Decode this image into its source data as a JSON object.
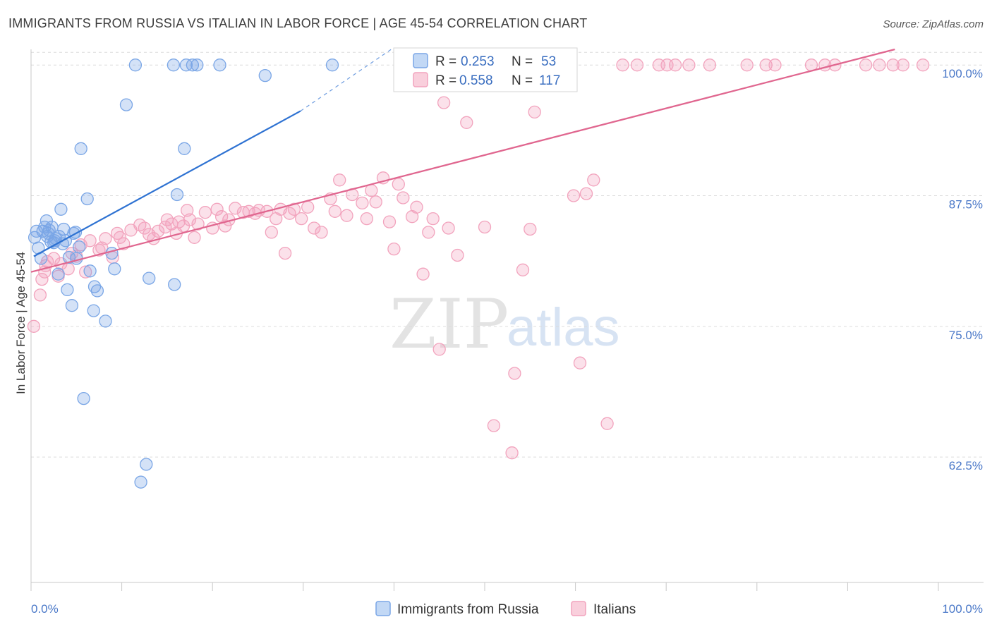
{
  "title": "IMMIGRANTS FROM RUSSIA VS ITALIAN IN LABOR FORCE | AGE 45-54 CORRELATION CHART",
  "source": "Source: ZipAtlas.com",
  "watermark": {
    "zip": "ZIP",
    "atlas": "atlas"
  },
  "legend_top": {
    "rows": [
      {
        "r_label": "R = ",
        "r_value": "0.253",
        "n_label": "N = ",
        "n_value": "53",
        "color": "#7aa6e6"
      },
      {
        "r_label": "R = ",
        "r_value": "0.558",
        "n_label": "N = ",
        "n_value": "117",
        "color": "#f2a3bd"
      }
    ]
  },
  "legend_bottom": [
    {
      "label": "Immigrants from Russia",
      "color": "#7aa6e6"
    },
    {
      "label": "Italians",
      "color": "#f2a3bd"
    }
  ],
  "chart_data": {
    "type": "scatter",
    "title": "IMMIGRANTS FROM RUSSIA VS ITALIAN IN LABOR FORCE | AGE 45-54 CORRELATION CHART",
    "xlabel": "",
    "ylabel": "In Labor Force | Age 45-54",
    "xlim": [
      0,
      100
    ],
    "ylim": [
      50.5,
      101.5
    ],
    "x_tick_labels": [
      "0.0%",
      "100.0%"
    ],
    "y_ticks": [
      62.5,
      75.0,
      87.5,
      100.0
    ],
    "y_tick_labels": [
      "62.5%",
      "75.0%",
      "87.5%",
      "100.0%"
    ],
    "grid": true,
    "series": [
      {
        "name": "Immigrants from Russia",
        "color": "#7aa6e6",
        "line_color": "#2e72d2",
        "trend": {
          "x0": 0.3,
          "y0": 81.7,
          "x1": 29.7,
          "y1": 95.6,
          "dash_to_x": 39.7,
          "dash_to_y": 101.5
        },
        "x": [
          0.4,
          0.6,
          0.8,
          1.1,
          1.3,
          1.5,
          1.7,
          1.8,
          1.9,
          2.0,
          2.2,
          2.3,
          2.5,
          2.6,
          2.7,
          3.0,
          3.1,
          3.3,
          3.5,
          3.6,
          3.8,
          4.0,
          4.2,
          4.5,
          4.7,
          4.9,
          5.0,
          5.3,
          5.5,
          5.8,
          6.2,
          6.5,
          6.9,
          7.0,
          7.3,
          8.2,
          8.9,
          9.2,
          10.5,
          11.5,
          12.1,
          12.7,
          13.0,
          15.7,
          15.8,
          16.1,
          16.9,
          17.1,
          17.8,
          18.3,
          20.8,
          25.8,
          33.2
        ],
        "y": [
          83.5,
          84.1,
          82.5,
          81.5,
          84.1,
          84.5,
          85.1,
          83.6,
          83.9,
          84.2,
          83.1,
          84.5,
          83.0,
          83.2,
          83.4,
          80.0,
          83.6,
          86.2,
          82.9,
          84.3,
          83.2,
          78.5,
          81.6,
          77.0,
          83.9,
          84.0,
          81.5,
          82.6,
          92.0,
          68.1,
          87.2,
          80.3,
          76.5,
          78.8,
          78.4,
          75.5,
          82.0,
          80.5,
          96.2,
          100.0,
          60.1,
          61.8,
          79.6,
          100.0,
          79.0,
          87.6,
          92.0,
          100.0,
          100.0,
          100.0,
          100.0,
          99.0,
          100.0
        ]
      },
      {
        "name": "Italians",
        "color": "#f2a3bd",
        "line_color": "#e0668f",
        "trend": {
          "x0": 0,
          "y0": 80.2,
          "x1": 95.2,
          "y1": 101.5
        },
        "x": [
          0.3,
          1.0,
          1.2,
          1.5,
          1.6,
          1.8,
          2.5,
          3.0,
          3.3,
          4.1,
          4.5,
          5.0,
          5.5,
          6.0,
          6.5,
          7.5,
          7.8,
          8.2,
          9.0,
          9.5,
          9.8,
          10.2,
          11.0,
          12.0,
          12.5,
          13.0,
          13.5,
          14.0,
          14.8,
          15.0,
          15.5,
          16.0,
          16.3,
          16.8,
          17.2,
          17.5,
          18.0,
          18.4,
          19.2,
          20.0,
          20.5,
          21.0,
          21.4,
          21.8,
          22.5,
          23.4,
          24.0,
          24.7,
          25.1,
          26.0,
          26.5,
          27.0,
          27.5,
          28.0,
          28.5,
          29.0,
          29.8,
          30.5,
          31.2,
          32.0,
          33.0,
          33.5,
          34.0,
          34.8,
          35.4,
          36.5,
          37.0,
          37.5,
          38.0,
          38.8,
          39.5,
          40.0,
          40.5,
          41.0,
          42.0,
          42.5,
          43.2,
          43.8,
          44.3,
          45.0,
          45.5,
          46.0,
          47.0,
          48.0,
          48.8,
          50.0,
          51.0,
          53.0,
          53.3,
          54.2,
          55.0,
          55.5,
          57.1,
          58.4,
          59.8,
          60.5,
          61.2,
          62.0,
          63.5,
          65.2,
          66.8,
          69.2,
          70.1,
          71.0,
          72.5,
          74.8,
          78.9,
          81.0,
          82.0,
          86.0,
          87.5,
          88.6,
          92.0,
          93.5,
          95.0,
          96.1,
          98.3
        ],
        "y": [
          75.0,
          78.0,
          79.5,
          80.2,
          80.8,
          81.2,
          81.5,
          79.8,
          81.0,
          80.5,
          82.0,
          81.7,
          82.8,
          80.2,
          83.2,
          82.3,
          82.5,
          83.4,
          81.6,
          83.9,
          83.5,
          82.9,
          84.2,
          84.7,
          84.4,
          83.8,
          83.4,
          84.1,
          84.5,
          85.2,
          84.8,
          83.9,
          85.0,
          84.6,
          86.1,
          85.2,
          83.5,
          84.8,
          85.9,
          84.4,
          86.2,
          85.5,
          84.6,
          85.2,
          86.3,
          85.9,
          86.0,
          85.8,
          86.1,
          86.0,
          84.0,
          85.3,
          86.2,
          82.0,
          85.8,
          86.2,
          85.3,
          86.4,
          84.4,
          84.0,
          87.2,
          86.0,
          89.0,
          85.6,
          87.6,
          86.8,
          85.3,
          88.0,
          86.9,
          89.2,
          85.0,
          82.4,
          88.6,
          87.3,
          85.5,
          86.4,
          80.0,
          84.0,
          85.3,
          72.8,
          96.4,
          84.4,
          81.8,
          94.5,
          100.0,
          84.5,
          65.5,
          62.9,
          70.5,
          80.4,
          84.3,
          95.5,
          100.0,
          100.0,
          87.5,
          71.5,
          87.7,
          89.0,
          65.7,
          100.0,
          100.0,
          100.0,
          100.0,
          100.0,
          100.0,
          100.0,
          100.0,
          100.0,
          100.0,
          100.0,
          100.0,
          100.0,
          100.0,
          100.0,
          100.0,
          100.0,
          100.0
        ]
      }
    ]
  }
}
